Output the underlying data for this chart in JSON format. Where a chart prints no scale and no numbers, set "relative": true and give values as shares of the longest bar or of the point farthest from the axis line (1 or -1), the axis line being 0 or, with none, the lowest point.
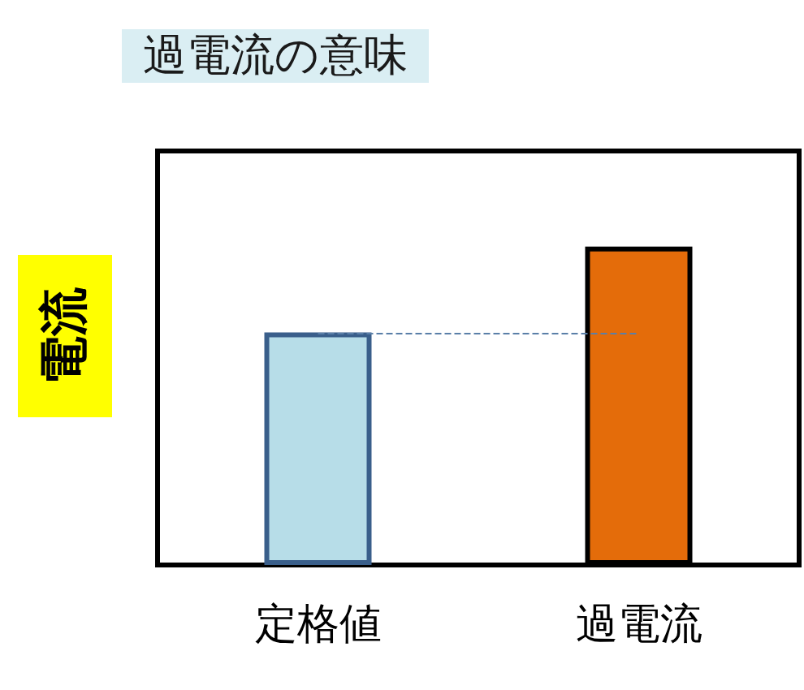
{
  "chart_data": {
    "type": "bar",
    "title": "過電流の意味",
    "ylabel": "電流",
    "categories": [
      "定格値",
      "過電流"
    ],
    "values": [
      0.73,
      1
    ],
    "colors": [
      "#b7dde8",
      "#e46c0a"
    ],
    "relative": true,
    "ref_lines": [
      {
        "axis": "y",
        "value": 0.73,
        "color": "#5a7fa8",
        "line_style": "dashed"
      }
    ]
  }
}
